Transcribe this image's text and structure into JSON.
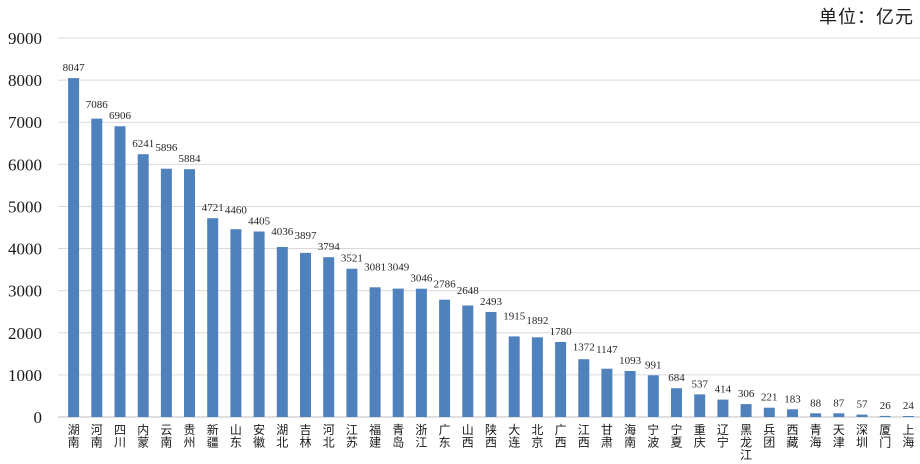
{
  "unit_label": "单位：亿元",
  "chart_data": {
    "type": "bar",
    "title": "",
    "unit_label": "单位：亿元",
    "categories": [
      "湖南",
      "河南",
      "四川",
      "内蒙",
      "云南",
      "贵州",
      "新疆",
      "山东",
      "安徽",
      "湖北",
      "吉林",
      "河北",
      "江苏",
      "福建",
      "青岛",
      "浙江",
      "广东",
      "山西",
      "陕西",
      "大连",
      "北京",
      "广西",
      "江西",
      "甘肃",
      "海南",
      "宁波",
      "宁夏",
      "重庆",
      "辽宁",
      "黑龙江",
      "兵团",
      "西藏",
      "青海",
      "天津",
      "深圳",
      "厦门",
      "上海"
    ],
    "values": [
      8047,
      7086,
      6906,
      6241,
      5896,
      5884,
      4721,
      4460,
      4405,
      4036,
      3897,
      3794,
      3521,
      3081,
      3049,
      3046,
      2786,
      2648,
      2493,
      1915,
      1892,
      1780,
      1372,
      1147,
      1093,
      991,
      684,
      537,
      414,
      306,
      221,
      183,
      88,
      87,
      57,
      26,
      24
    ],
    "value_labels_shown": true,
    "yticks": [
      0,
      1000,
      2000,
      3000,
      4000,
      5000,
      6000,
      7000,
      8000,
      9000
    ],
    "ylim": [
      0,
      9000
    ],
    "xlabel": "",
    "ylabel": "",
    "grid": true,
    "legend": "none",
    "bar_color": "#4F81BD",
    "gridline_color": "#d9d9d9",
    "axis_line_color": "#bfbfbf",
    "label_color": "#262626",
    "tick_color": "#1a1a1a"
  }
}
